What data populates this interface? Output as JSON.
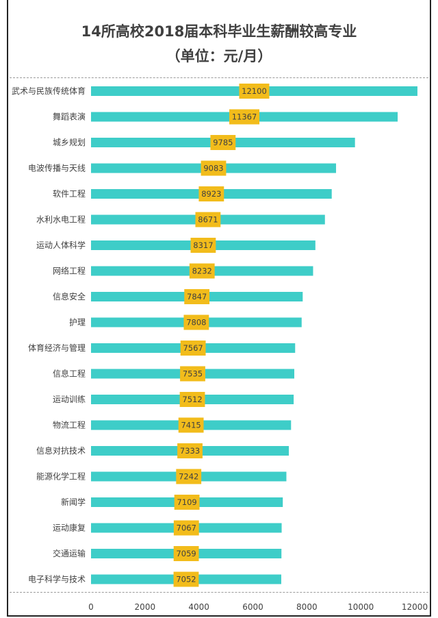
{
  "chart_data": {
    "type": "bar",
    "orientation": "horizontal",
    "title": "14所高校2018届本科毕业生薪酬较高专业",
    "subtitle": "（单位：元/月）",
    "categories": [
      "武术与民族传统体育",
      "舞蹈表演",
      "城乡规划",
      "电波传播与天线",
      "软件工程",
      "水利水电工程",
      "运动人体科学",
      "网络工程",
      "信息安全",
      "护理",
      "体育经济与管理",
      "信息工程",
      "运动训练",
      "物流工程",
      "信息对抗技术",
      "能源化学工程",
      "新闻学",
      "运动康复",
      "交通运输",
      "电子科学与技术"
    ],
    "values": [
      12100,
      11367,
      9785,
      9083,
      8923,
      8671,
      8317,
      8232,
      7847,
      7808,
      7567,
      7535,
      7512,
      7415,
      7333,
      7242,
      7109,
      7067,
      7059,
      7052
    ],
    "xlim": [
      0,
      12000
    ],
    "xticks": [
      "0",
      "2000",
      "4000",
      "6000",
      "8000",
      "10000",
      "12000"
    ],
    "bar_color": "#3ecdc8",
    "label_bg_color": "#f2bc1b",
    "grid": false
  }
}
